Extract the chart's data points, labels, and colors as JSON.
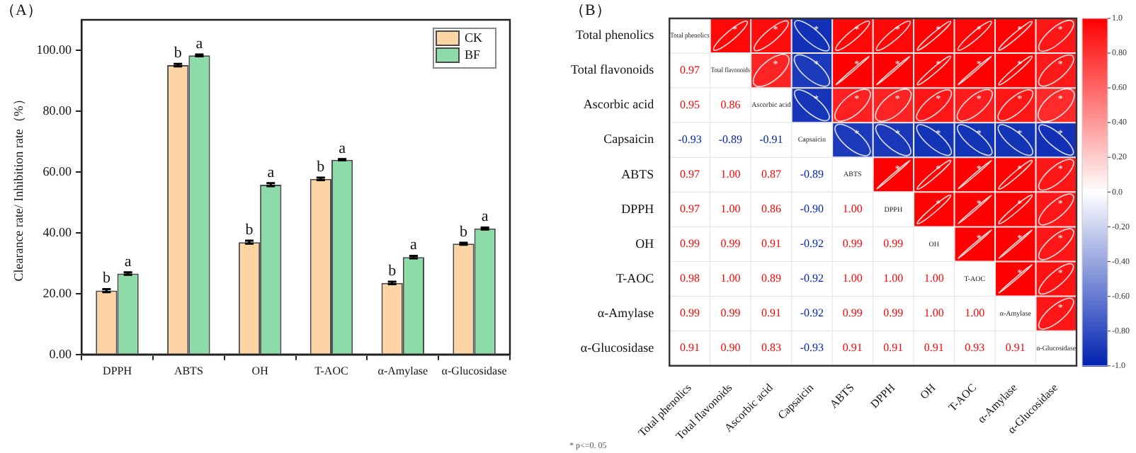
{
  "chart_data": [
    {
      "type": "bar",
      "title": "（A）",
      "ylabel": "Clearance rate/ Inhibition rate（%）",
      "categories": [
        "DPPH",
        "ABTS",
        "OH",
        "T-AOC",
        "α-Amylase",
        "α-Glucosidase"
      ],
      "series": [
        {
          "name": "CK",
          "color": "#fdd5a5",
          "values": [
            21.0,
            95.1,
            36.9,
            57.7,
            23.5,
            36.4
          ],
          "errors": [
            0.5,
            0.4,
            0.5,
            0.4,
            0.4,
            0.3
          ],
          "value_labels": [
            "b",
            "b",
            "b",
            "b",
            "b",
            "b"
          ]
        },
        {
          "name": "BF",
          "color": "#8edbaa",
          "values": [
            26.6,
            98.3,
            55.8,
            64.0,
            32.0,
            41.4
          ],
          "errors": [
            0.4,
            0.3,
            0.5,
            0.2,
            0.4,
            0.3
          ],
          "value_labels": [
            "a",
            "a",
            "a",
            "a",
            "a",
            "a"
          ]
        }
      ],
      "ylim": [
        0,
        110
      ],
      "yticks": [
        {
          "value": 0,
          "label": "0.00"
        },
        {
          "value": 20,
          "label": "20.00"
        },
        {
          "value": 40,
          "label": "40.00"
        },
        {
          "value": 60,
          "label": "60.00"
        },
        {
          "value": 80,
          "label": "80.00"
        },
        {
          "value": 100,
          "label": "100.00"
        }
      ],
      "legend": "top right",
      "grid": false
    },
    {
      "type": "heatmap",
      "title": "（B）",
      "categories": [
        "Total phenolics",
        "Total flavonoids",
        "Ascorbic acid",
        "Capsaicin",
        "ABTS",
        "DPPH",
        "OH",
        "T-AOC",
        "α-Amylase",
        "α-Glucosidase"
      ],
      "y_categories": [
        "Total phenolics",
        "Total flavonoids",
        "Ascorbic acid",
        "Capsaicin",
        "ABTS",
        "DPPH",
        "OH",
        "T-AOC",
        "α-Amylase",
        "α-Glucosidase"
      ],
      "cells": [
        [
          null,
          0.97,
          0.95,
          -0.93,
          0.97,
          0.97,
          0.99,
          0.98,
          0.99,
          0.91
        ],
        [
          null,
          null,
          0.86,
          -0.89,
          1.0,
          1.0,
          0.99,
          1.0,
          0.99,
          0.9
        ],
        [
          null,
          null,
          null,
          -0.91,
          0.87,
          0.86,
          0.91,
          0.89,
          0.91,
          0.83
        ],
        [
          null,
          null,
          null,
          null,
          -0.89,
          -0.9,
          -0.92,
          -0.92,
          -0.92,
          -0.93
        ],
        [
          null,
          null,
          null,
          null,
          null,
          1.0,
          0.99,
          1.0,
          0.99,
          0.91
        ],
        [
          null,
          null,
          null,
          null,
          null,
          null,
          0.99,
          1.0,
          0.99,
          0.91
        ],
        [
          null,
          null,
          null,
          null,
          null,
          null,
          null,
          1.0,
          1.0,
          0.91
        ],
        [
          null,
          null,
          null,
          null,
          null,
          null,
          null,
          null,
          1.0,
          0.93
        ],
        [
          null,
          null,
          null,
          null,
          null,
          null,
          null,
          null,
          null,
          0.91
        ],
        [
          null,
          null,
          null,
          null,
          null,
          null,
          null,
          null,
          null,
          null
        ]
      ],
      "cell_labels": [
        [
          "Total phenolics",
          "*",
          "*",
          "*",
          "*",
          "*",
          "*",
          "*",
          "*",
          "*"
        ],
        [
          "0.97",
          "Total flavonoids",
          "*",
          "*",
          "*",
          "*",
          "*",
          "*",
          "*",
          "*"
        ],
        [
          "0.95",
          "0.86",
          "Ascorbic acid",
          "*",
          "*",
          "*",
          "*",
          "*",
          "*",
          "*"
        ],
        [
          "-0.93",
          "-0.89",
          "-0.91",
          "Capsaicin",
          "*",
          "*",
          "*",
          "*",
          "*",
          "*"
        ],
        [
          "0.97",
          "1.00",
          "0.87",
          "-0.89",
          "ABTS",
          "*",
          "*",
          "*",
          "*",
          "*"
        ],
        [
          "0.97",
          "1.00",
          "0.86",
          "-0.90",
          "1.00",
          "DPPH",
          "*",
          "*",
          "*",
          "*"
        ],
        [
          "0.99",
          "0.99",
          "0.91",
          "-0.92",
          "0.99",
          "0.99",
          "OH",
          "*",
          "*",
          "*"
        ],
        [
          "0.98",
          "1.00",
          "0.89",
          "-0.92",
          "1.00",
          "1.00",
          "1.00",
          "T-AOC",
          "*",
          "*"
        ],
        [
          "0.99",
          "0.99",
          "0.91",
          "-0.92",
          "0.99",
          "0.99",
          "1.00",
          "1.00",
          "α-Amylase",
          "*"
        ],
        [
          "0.91",
          "0.90",
          "0.83",
          "-0.93",
          "0.91",
          "0.91",
          "0.91",
          "0.93",
          "0.91",
          "α-Glucosidase"
        ]
      ],
      "clim": [
        -1,
        1
      ],
      "cticks": [
        {
          "value": 1,
          "label": "1.0"
        },
        {
          "value": 0.8,
          "label": "0.80"
        },
        {
          "value": 0.6,
          "label": "0.60"
        },
        {
          "value": 0.4,
          "label": "0.40"
        },
        {
          "value": 0.2,
          "label": "0.20"
        },
        {
          "value": 0,
          "label": "0.0"
        },
        {
          "value": -0.2,
          "label": "-0.20"
        },
        {
          "value": -0.4,
          "label": "-0.40"
        },
        {
          "value": -0.6,
          "label": "-0.60"
        },
        {
          "value": -0.8,
          "label": "-0.80"
        },
        {
          "value": -1,
          "label": "-1.0"
        }
      ],
      "annotations": [
        "* p<=0. 05"
      ]
    }
  ]
}
